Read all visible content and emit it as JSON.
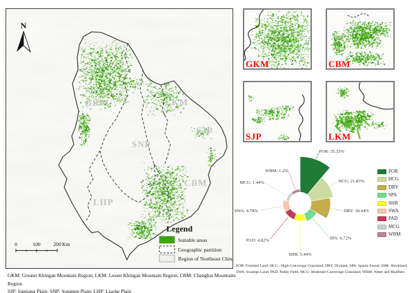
{
  "map": {
    "north_label": "N",
    "region_labels": [
      "GKM",
      "LKM",
      "SJP",
      "SNP",
      "CBM",
      "LHP"
    ],
    "scale_bar": {
      "tick_labels": [
        "0",
        "100",
        "200"
      ],
      "unit": "Km"
    },
    "legend": {
      "title": "Legend",
      "items": [
        {
          "label": "Suitable areas",
          "swatch": "suitable"
        },
        {
          "label": "Geographic partition",
          "swatch": "partition"
        },
        {
          "label": "Region of Northeast China",
          "swatch": "region"
        }
      ]
    },
    "suitable_areas_color": "#38A800",
    "suitable_areas_dark_color": "#1f7d14"
  },
  "insets": [
    {
      "label": "GKM"
    },
    {
      "label": "CBM"
    },
    {
      "label": "SJP"
    },
    {
      "label": "LKM"
    }
  ],
  "inset_label_color": "#FF0000",
  "captions": {
    "left_line1": "GKM:  Greater Khingan Mountain Region; LKM: Lesser Khingan Mountain Region; CBM: Changbai Mountains Region",
    "left_line2": "SJP: Sanjiang Plain; SNP: Songnen Plain; LHP: Liaohe Plain",
    "right_line1": "FOR: Forested Land; HCG : High-Converage Grassland; DRY: Dryland; SPA: Sparse Forest; SHR: Shrubland;",
    "right_line2": "SWA: Swamps Land; PAD: Paddy Field; MCG: Moderate-Converage Grassland; WBM: Water and Mudflats"
  },
  "chart_data": {
    "type": "pie",
    "variant": "nightingale-rose-donut",
    "title": "",
    "legend_position": "right",
    "clockwise_from_top": true,
    "series": [
      {
        "name": "FOR",
        "value": 35.33,
        "label": "FOR: 35.33%",
        "color": "#1e7b36"
      },
      {
        "name": "HCG",
        "value": 21.83,
        "label": "HCG: 21.83%",
        "color": "#cbdca2"
      },
      {
        "name": "DRY",
        "value": 18.44,
        "label": "DRY: 18.44%",
        "color": "#c5ac4b"
      },
      {
        "name": "SPA",
        "value": 6.72,
        "label": "SPA: 6.72%",
        "color": "#70dd90"
      },
      {
        "name": "SHR",
        "value": 5.44,
        "label": "SHR: 5.44%",
        "color": "#fbfb33"
      },
      {
        "name": "PAD",
        "value": 4.82,
        "label": "PAD: 4.82%",
        "color": "#c13a5c"
      },
      {
        "name": "SWA",
        "value": 4.78,
        "label": "SWA: 4.78%",
        "color": "#f9c6ae"
      },
      {
        "name": "MCG",
        "value": 1.44,
        "label": "MCG: 1.44%",
        "color": "#cbd1ce"
      },
      {
        "name": "WBM",
        "value": 1.2,
        "label": "WBM: 1.2%",
        "color": "#bc8296"
      }
    ],
    "legend_order": [
      "FOR",
      "HCG",
      "DRY",
      "SPA",
      "SHR",
      "SWA",
      "PAD",
      "MCG",
      "WBM"
    ]
  }
}
